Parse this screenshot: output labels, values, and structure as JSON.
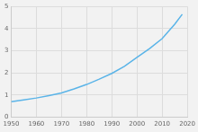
{
  "chart_data": {
    "type": "line",
    "x": [
      1950,
      1955,
      1960,
      1965,
      1970,
      1975,
      1980,
      1985,
      1990,
      1995,
      2000,
      2005,
      2010,
      2015,
      2018
    ],
    "values": [
      0.7,
      0.78,
      0.87,
      0.98,
      1.1,
      1.28,
      1.48,
      1.72,
      1.98,
      2.3,
      2.7,
      3.1,
      3.55,
      4.2,
      4.65
    ],
    "color": "#5ab4e8",
    "xlim": [
      1950,
      2020
    ],
    "xticks": [
      1950,
      1960,
      1970,
      1980,
      1990,
      2000,
      2010,
      2020
    ],
    "ylim": [
      0,
      5
    ],
    "yticks": [
      0,
      1,
      2,
      3,
      4,
      5
    ],
    "grid": true
  }
}
